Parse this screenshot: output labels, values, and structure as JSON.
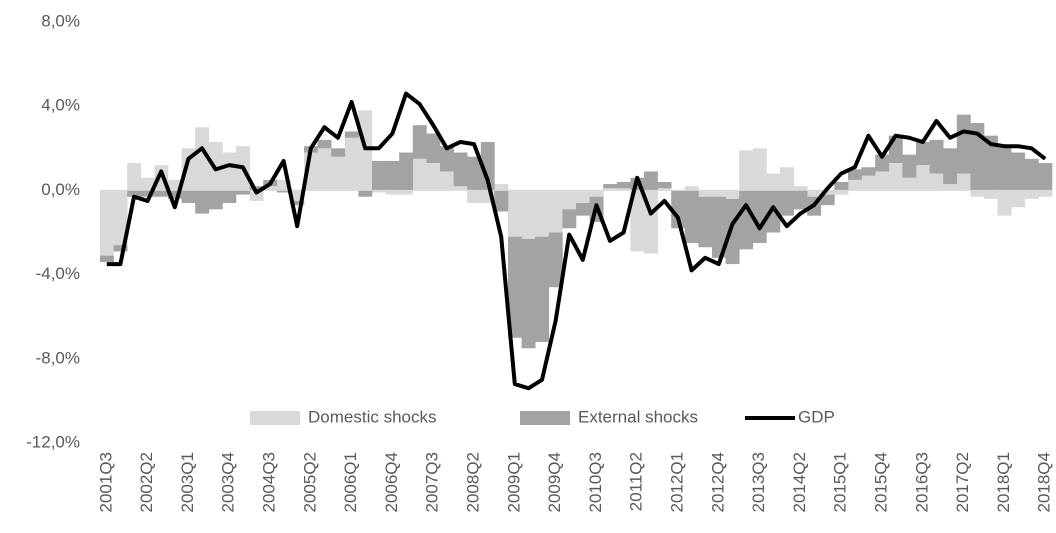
{
  "chart_data": {
    "type": "bar",
    "categories": [
      "2001Q3",
      null,
      null,
      "2002Q2",
      null,
      null,
      "2003Q1",
      null,
      null,
      "2003Q4",
      null,
      null,
      "2004Q3",
      null,
      null,
      "2005Q2",
      null,
      null,
      "2006Q1",
      null,
      null,
      "2006Q4",
      null,
      null,
      "2007Q3",
      null,
      null,
      "2008Q2",
      null,
      null,
      "2009Q1",
      null,
      null,
      "2009Q4",
      null,
      null,
      "2010Q3",
      null,
      null,
      "2011Q2",
      null,
      null,
      "2012Q1",
      null,
      null,
      "2012Q4",
      null,
      null,
      "2013Q3",
      null,
      null,
      "2014Q2",
      null,
      null,
      "2015Q1",
      null,
      null,
      "2015Q4",
      null,
      null,
      "2016Q3",
      null,
      null,
      "2017Q2",
      null,
      null,
      "2018Q1",
      null,
      null,
      "2018Q4"
    ],
    "series": [
      {
        "name": "Domestic shocks",
        "type": "bar",
        "color": "#d9d9d9",
        "values": [
          -3.1,
          -2.6,
          1.3,
          0.6,
          1.2,
          0.5,
          2.0,
          3.0,
          2.3,
          1.8,
          2.1,
          -0.5,
          0.2,
          0.5,
          -0.5,
          1.8,
          2.0,
          1.6,
          2.5,
          3.8,
          -0.1,
          -0.2,
          -0.2,
          1.5,
          1.3,
          0.9,
          0.2,
          -0.6,
          -0.6,
          0.3,
          -2.2,
          -2.3,
          -2.2,
          -2.0,
          -0.9,
          -0.6,
          -0.3,
          0.1,
          0.1,
          -2.9,
          -3.0,
          0.1,
          0.0,
          0.2,
          -0.3,
          -0.3,
          -0.4,
          1.9,
          2.0,
          0.8,
          1.1,
          0.2,
          -0.3,
          -0.2,
          -0.2,
          0.5,
          0.7,
          0.9,
          1.3,
          0.6,
          1.2,
          0.8,
          0.3,
          0.8,
          -0.3,
          -0.4,
          -1.2,
          -0.8,
          -0.4,
          -0.3
        ]
      },
      {
        "name": "External shocks",
        "type": "bar",
        "color": "#a3a3a3",
        "values": [
          -0.3,
          -0.3,
          -0.3,
          -0.3,
          -0.3,
          -0.4,
          -0.6,
          -1.1,
          -0.9,
          -0.6,
          -0.2,
          0.2,
          0.3,
          -0.1,
          -0.2,
          0.3,
          0.4,
          0.4,
          0.3,
          -0.3,
          1.4,
          1.4,
          1.8,
          1.6,
          1.4,
          1.2,
          1.6,
          1.6,
          2.3,
          -1.0,
          -4.8,
          -5.2,
          -5.0,
          -2.6,
          -0.9,
          -0.6,
          -1.2,
          0.2,
          0.3,
          0.6,
          0.9,
          0.3,
          -1.8,
          -2.5,
          -2.4,
          -2.9,
          -3.1,
          -2.8,
          -2.5,
          -2.0,
          -1.2,
          -0.9,
          -0.9,
          -0.5,
          0.4,
          0.5,
          0.4,
          0.8,
          1.3,
          1.1,
          1.1,
          1.6,
          1.7,
          2.8,
          3.2,
          2.6,
          2.1,
          1.8,
          1.5,
          1.3
        ]
      },
      {
        "name": "GDP",
        "type": "line",
        "color": "#000000",
        "values": [
          -3.5,
          -3.5,
          -0.3,
          -0.5,
          0.9,
          -0.8,
          1.5,
          2.0,
          1.0,
          1.2,
          1.1,
          -0.1,
          0.3,
          1.4,
          -1.7,
          2.0,
          3.0,
          2.5,
          4.2,
          2.0,
          2.0,
          2.7,
          4.6,
          4.1,
          3.1,
          2.0,
          2.3,
          2.2,
          0.5,
          -2.2,
          -9.2,
          -9.4,
          -9.0,
          -6.2,
          -2.1,
          -3.3,
          -0.7,
          -2.4,
          -2.0,
          0.6,
          -1.1,
          -0.5,
          -1.3,
          -3.8,
          -3.2,
          -3.5,
          -1.6,
          -0.7,
          -1.8,
          -0.8,
          -1.7,
          -1.1,
          -0.7,
          0.1,
          0.8,
          1.1,
          2.6,
          1.6,
          2.6,
          2.5,
          2.3,
          3.3,
          2.5,
          2.8,
          2.7,
          2.2,
          2.1,
          2.1,
          2.0,
          1.5
        ]
      }
    ],
    "ylim": [
      -12,
      8
    ],
    "yticks": [
      {
        "value": -12,
        "label": "-12,0%"
      },
      {
        "value": -8,
        "label": "-8,0%"
      },
      {
        "value": -4,
        "label": "-4,0%"
      },
      {
        "value": 0,
        "label": "0,0%"
      },
      {
        "value": 4,
        "label": "4,0%"
      },
      {
        "value": 8,
        "label": "8,0%"
      }
    ],
    "grid": false,
    "legend": "bottom"
  }
}
